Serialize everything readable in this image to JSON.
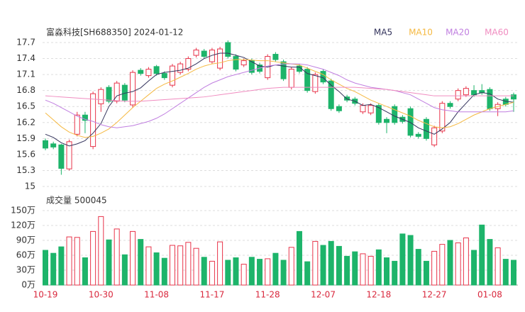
{
  "chart_data": {
    "type": "candlestick",
    "title": "富淼科技[SH688350] 2024-01-12",
    "categories": [
      "10-19",
      null,
      null,
      null,
      null,
      null,
      null,
      "10-30",
      null,
      null,
      null,
      null,
      null,
      null,
      "11-08",
      null,
      null,
      null,
      null,
      null,
      null,
      "11-17",
      null,
      null,
      null,
      null,
      null,
      null,
      "11-28",
      null,
      null,
      null,
      null,
      null,
      null,
      "12-07",
      null,
      null,
      null,
      null,
      null,
      null,
      "12-18",
      null,
      null,
      null,
      null,
      null,
      null,
      "12-27",
      null,
      null,
      null,
      null,
      null,
      null,
      "01-08",
      null,
      null,
      null
    ],
    "open": [
      15.86,
      15.8,
      15.78,
      15.33,
      15.98,
      16.34,
      15.75,
      16.55,
      16.86,
      16.6,
      16.9,
      16.53,
      17.18,
      17.08,
      17.25,
      17.12,
      16.9,
      17.14,
      17.2,
      17.46,
      17.54,
      17.34,
      17.22,
      17.7,
      17.44,
      17.28,
      17.36,
      17.28,
      17.04,
      17.48,
      17.34,
      16.86,
      17.26,
      17.2,
      16.78,
      17.16,
      16.98,
      16.5,
      16.68,
      16.64,
      16.4,
      16.38,
      16.52,
      16.26,
      16.5,
      16.3,
      16.46,
      15.98,
      16.26,
      15.78,
      16.04,
      16.56,
      16.64,
      16.72,
      16.8,
      16.8,
      16.82,
      16.46,
      16.64,
      16.72
    ],
    "close": [
      15.72,
      15.74,
      15.34,
      15.84,
      16.34,
      16.24,
      16.74,
      16.82,
      16.6,
      16.94,
      16.62,
      17.14,
      17.12,
      17.2,
      17.12,
      17.04,
      17.26,
      17.3,
      17.4,
      17.56,
      17.44,
      17.56,
      17.58,
      17.44,
      17.2,
      17.36,
      17.14,
      17.16,
      17.44,
      17.38,
      17.02,
      17.2,
      17.16,
      16.8,
      17.1,
      16.96,
      16.46,
      16.42,
      16.62,
      16.56,
      16.52,
      16.52,
      16.2,
      16.2,
      16.2,
      16.22,
      15.96,
      15.94,
      15.9,
      16.1,
      16.56,
      16.5,
      16.8,
      16.84,
      16.72,
      16.76,
      16.46,
      16.54,
      16.54,
      16.64
    ],
    "high": [
      15.9,
      15.84,
      15.8,
      15.88,
      16.4,
      16.4,
      16.78,
      16.86,
      16.9,
      16.98,
      16.94,
      17.18,
      17.22,
      17.24,
      17.28,
      17.16,
      17.3,
      17.34,
      17.44,
      17.6,
      17.58,
      17.6,
      17.62,
      17.74,
      17.48,
      17.4,
      17.4,
      17.32,
      17.48,
      17.52,
      17.38,
      17.24,
      17.3,
      17.24,
      17.14,
      17.2,
      17.02,
      16.54,
      16.72,
      16.68,
      16.56,
      16.56,
      16.56,
      16.3,
      16.54,
      16.34,
      16.5,
      16.02,
      16.3,
      16.14,
      16.6,
      16.6,
      16.84,
      16.88,
      16.9,
      16.92,
      16.86,
      16.58,
      16.68,
      16.76
    ],
    "low": [
      15.68,
      15.7,
      15.22,
      15.3,
      15.94,
      16.0,
      15.7,
      16.4,
      16.56,
      16.56,
      16.58,
      16.48,
      17.08,
      17.04,
      17.08,
      17.0,
      16.86,
      17.1,
      17.16,
      17.42,
      17.4,
      17.3,
      17.18,
      17.4,
      17.16,
      17.24,
      17.1,
      17.12,
      17.0,
      17.34,
      16.98,
      16.82,
      17.12,
      16.76,
      16.74,
      16.92,
      16.42,
      16.38,
      16.58,
      16.52,
      16.36,
      16.34,
      16.16,
      16.0,
      16.16,
      16.18,
      15.92,
      15.9,
      15.86,
      15.74,
      16.0,
      16.46,
      16.6,
      16.68,
      16.68,
      16.72,
      16.42,
      16.32,
      16.5,
      16.4
    ],
    "up_color": "#e8344a",
    "down_color": "#1db46a",
    "ylim": [
      15,
      17.7
    ],
    "yticks": [
      15,
      15.3,
      15.6,
      15.9,
      16.2,
      16.5,
      16.8,
      17.1,
      17.4,
      17.7
    ],
    "grid": true,
    "series": [
      {
        "name": "MA5",
        "color": "#33335c",
        "values": [
          15.98,
          15.92,
          15.82,
          15.76,
          15.8,
          15.86,
          16.0,
          16.18,
          16.5,
          16.7,
          16.75,
          16.78,
          16.85,
          16.98,
          17.1,
          17.14,
          17.16,
          17.18,
          17.22,
          17.3,
          17.4,
          17.46,
          17.5,
          17.5,
          17.46,
          17.42,
          17.34,
          17.26,
          17.24,
          17.28,
          17.26,
          17.24,
          17.24,
          17.12,
          17.08,
          17.04,
          16.9,
          16.78,
          16.64,
          16.6,
          16.52,
          16.54,
          16.48,
          16.4,
          16.32,
          16.26,
          16.2,
          16.1,
          16.04,
          15.98,
          16.08,
          16.2,
          16.4,
          16.56,
          16.72,
          16.76,
          16.74,
          16.64,
          16.6,
          16.58
        ]
      },
      {
        "name": "MA10",
        "color": "#f5b942",
        "values": [
          16.38,
          16.25,
          16.12,
          16.02,
          15.96,
          15.92,
          15.94,
          16.0,
          16.08,
          16.2,
          16.34,
          16.48,
          16.6,
          16.72,
          16.84,
          16.92,
          16.98,
          17.05,
          17.12,
          17.2,
          17.26,
          17.3,
          17.32,
          17.36,
          17.38,
          17.38,
          17.37,
          17.36,
          17.36,
          17.34,
          17.32,
          17.3,
          17.28,
          17.22,
          17.16,
          17.1,
          17.0,
          16.92,
          16.84,
          16.78,
          16.7,
          16.62,
          16.56,
          16.5,
          16.44,
          16.38,
          16.32,
          16.24,
          16.18,
          16.12,
          16.1,
          16.12,
          16.18,
          16.26,
          16.34,
          16.4,
          16.46,
          16.5,
          16.54,
          16.58
        ]
      },
      {
        "name": "MA20",
        "color": "#c07fe0",
        "values": [
          16.62,
          16.56,
          16.48,
          16.4,
          16.32,
          16.26,
          16.22,
          16.16,
          16.12,
          16.1,
          16.12,
          16.14,
          16.18,
          16.22,
          16.28,
          16.36,
          16.46,
          16.56,
          16.66,
          16.76,
          16.86,
          16.94,
          17.0,
          17.06,
          17.1,
          17.14,
          17.18,
          17.22,
          17.26,
          17.28,
          17.3,
          17.3,
          17.3,
          17.28,
          17.24,
          17.2,
          17.14,
          17.08,
          17.0,
          16.94,
          16.9,
          16.86,
          16.84,
          16.82,
          16.8,
          16.76,
          16.72,
          16.64,
          16.56,
          16.48,
          16.44,
          16.42,
          16.4,
          16.4,
          16.4,
          16.4,
          16.4,
          16.4,
          16.4,
          16.42
        ]
      },
      {
        "name": "MA60",
        "color": "#f08cc0",
        "values": [
          16.7,
          16.69,
          16.68,
          16.67,
          16.66,
          16.65,
          16.64,
          16.63,
          16.62,
          16.61,
          16.6,
          16.6,
          16.6,
          16.61,
          16.62,
          16.63,
          16.64,
          16.65,
          16.66,
          16.67,
          16.68,
          16.7,
          16.72,
          16.74,
          16.76,
          16.78,
          16.8,
          16.82,
          16.84,
          16.85,
          16.86,
          16.86,
          16.86,
          16.86,
          16.86,
          16.86,
          16.86,
          16.86,
          16.86,
          16.86,
          16.85,
          16.84,
          16.83,
          16.82,
          16.8,
          16.78,
          16.76,
          16.74,
          16.72,
          16.7,
          16.7,
          16.7,
          16.7,
          16.7,
          16.7,
          16.7,
          16.7,
          16.7,
          16.7,
          16.7
        ]
      }
    ],
    "volume_title": "成交量 500045",
    "volume": [
      70,
      64,
      77,
      97,
      96,
      55,
      108,
      138,
      91,
      113,
      61,
      108,
      92,
      77,
      65,
      54,
      80,
      79,
      86,
      74,
      56,
      48,
      87,
      50,
      55,
      42,
      56,
      52,
      53,
      64,
      50,
      76,
      108,
      47,
      88,
      80,
      88,
      78,
      58,
      67,
      63,
      58,
      71,
      55,
      48,
      103,
      100,
      72,
      48,
      68,
      82,
      90,
      85,
      95,
      70,
      121,
      92,
      75,
      52,
      50
    ],
    "volume_ylim": [
      0,
      150
    ],
    "volume_yticks": [
      {
        "value": 0,
        "label": "0万"
      },
      {
        "value": 30,
        "label": "30万"
      },
      {
        "value": 60,
        "label": "60万"
      },
      {
        "value": 90,
        "label": "90万"
      },
      {
        "value": 120,
        "label": "120万"
      },
      {
        "value": 150,
        "label": "150万"
      }
    ]
  }
}
